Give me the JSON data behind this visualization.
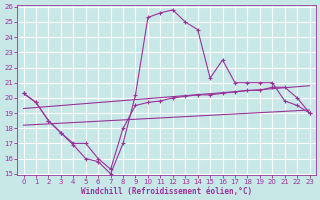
{
  "bg_color": "#c8e8e8",
  "line_color": "#993399",
  "grid_color": "#ffffff",
  "xlabel": "Windchill (Refroidissement éolien,°C)",
  "ylim": [
    15,
    26
  ],
  "xlim": [
    -0.5,
    23.5
  ],
  "yticks": [
    15,
    16,
    17,
    18,
    19,
    20,
    21,
    22,
    23,
    24,
    25,
    26
  ],
  "xticks": [
    0,
    1,
    2,
    3,
    4,
    5,
    6,
    7,
    8,
    9,
    10,
    11,
    12,
    13,
    14,
    15,
    16,
    17,
    18,
    19,
    20,
    21,
    22,
    23
  ],
  "line1_x": [
    0,
    1,
    2,
    3,
    4,
    5,
    6,
    7,
    8,
    9,
    10,
    11,
    12,
    13,
    14,
    15,
    16,
    17,
    18,
    19,
    20,
    21,
    22,
    23
  ],
  "line1_y": [
    20.3,
    19.7,
    18.5,
    17.7,
    16.9,
    16.0,
    15.8,
    15.0,
    17.0,
    20.2,
    25.3,
    25.6,
    25.8,
    25.0,
    24.5,
    21.3,
    22.5,
    21.0,
    21.0,
    21.0,
    21.0,
    19.8,
    19.5,
    19.0
  ],
  "line2_x": [
    0,
    1,
    2,
    3,
    4,
    5,
    6,
    7,
    8,
    9,
    10,
    11,
    12,
    13,
    14,
    15,
    16,
    17,
    18,
    19,
    20,
    21,
    22,
    23
  ],
  "line2_y": [
    20.3,
    19.7,
    18.5,
    17.7,
    17.0,
    17.0,
    16.0,
    15.3,
    18.0,
    19.5,
    19.7,
    19.8,
    20.0,
    20.1,
    20.2,
    20.2,
    20.3,
    20.4,
    20.5,
    20.5,
    20.7,
    20.7,
    20.0,
    19.0
  ],
  "line3_x": [
    0,
    23
  ],
  "line3_y": [
    19.3,
    20.8
  ],
  "line4_x": [
    0,
    23
  ],
  "line4_y": [
    18.2,
    19.2
  ]
}
